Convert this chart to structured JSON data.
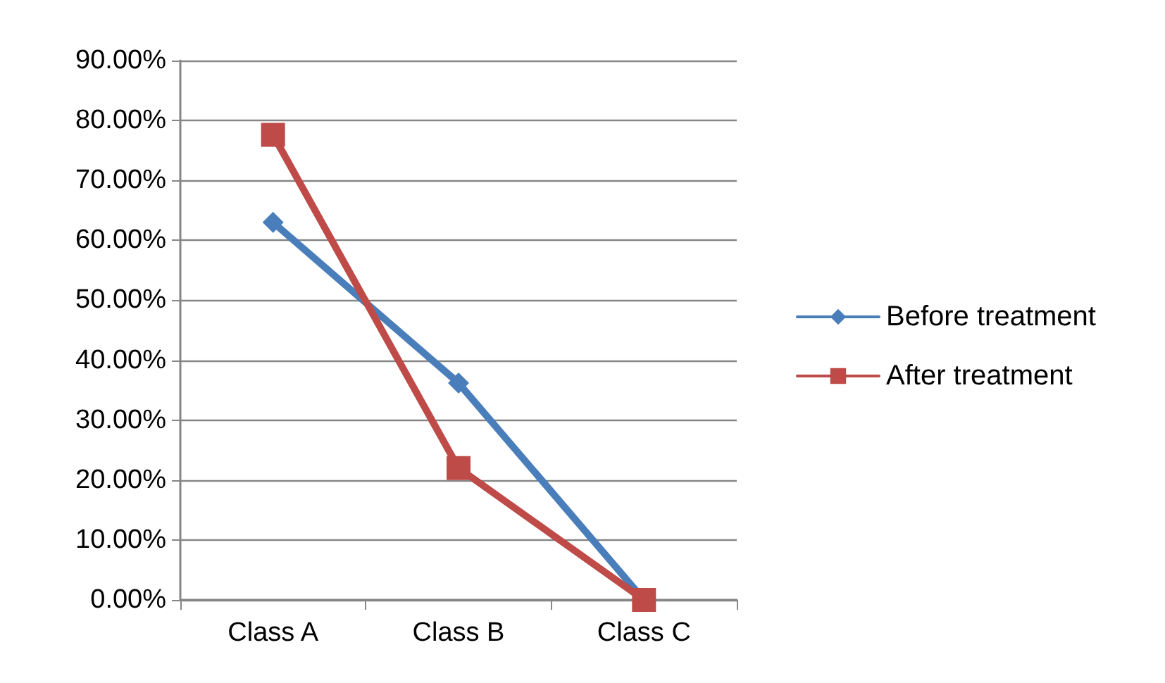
{
  "chart_data": {
    "type": "line",
    "categories": [
      "Class A",
      "Class B",
      "Class C"
    ],
    "series": [
      {
        "name": "Before treatment",
        "color": "#4a7ebb",
        "marker": "diamond",
        "values": [
          63.0,
          36.2,
          0
        ]
      },
      {
        "name": "After treatment",
        "color": "#be4b48",
        "marker": "square",
        "values": [
          77.6,
          22.0,
          0
        ]
      }
    ],
    "ylim": [
      0,
      90
    ],
    "yticks": [
      {
        "value": 0,
        "label": "0.00%"
      },
      {
        "value": 10,
        "label": "10.00%"
      },
      {
        "value": 20,
        "label": "20.00%"
      },
      {
        "value": 30,
        "label": "30.00%"
      },
      {
        "value": 40,
        "label": "40.00%"
      },
      {
        "value": 50,
        "label": "50.00%"
      },
      {
        "value": 60,
        "label": "60.00%"
      },
      {
        "value": 70,
        "label": "70.00%"
      },
      {
        "value": 80,
        "label": "80.00%"
      },
      {
        "value": 90,
        "label": "90.00%"
      }
    ],
    "grid": "y",
    "legend": "right",
    "line_style": "solid"
  }
}
